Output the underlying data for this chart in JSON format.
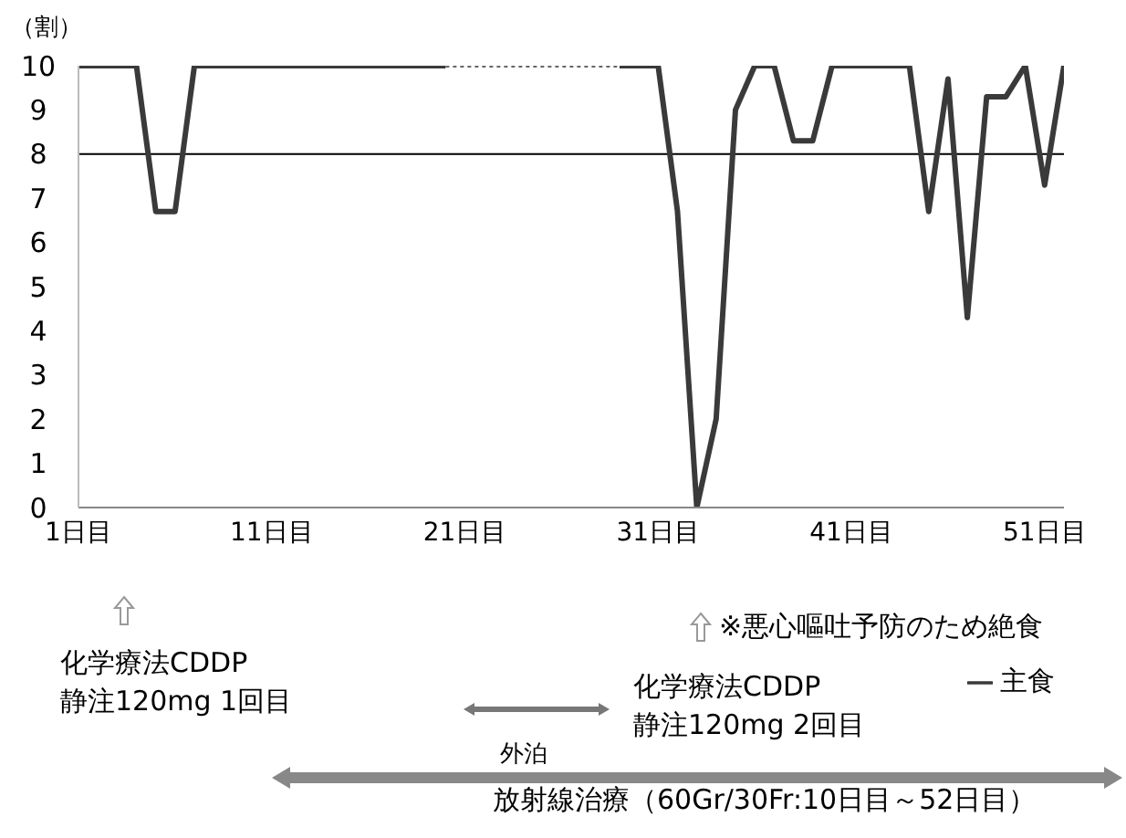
{
  "chart_data": {
    "type": "line",
    "ylabel": "（割）",
    "x": [
      1,
      2,
      3,
      4,
      5,
      6,
      7,
      8,
      9,
      10,
      11,
      12,
      13,
      14,
      15,
      16,
      17,
      18,
      19,
      20,
      21,
      22,
      23,
      24,
      25,
      26,
      27,
      28,
      29,
      30,
      31,
      32,
      33,
      34,
      35,
      36,
      37,
      38,
      39,
      40,
      41,
      42,
      43,
      44,
      45,
      46,
      47,
      48,
      49,
      50,
      51,
      52
    ],
    "xlim": [
      1,
      52
    ],
    "xticks": [
      {
        "value": 1,
        "label": "1日目"
      },
      {
        "value": 11,
        "label": "11日目"
      },
      {
        "value": 21,
        "label": "21日目"
      },
      {
        "value": 31,
        "label": "31日目"
      },
      {
        "value": 41,
        "label": "41日目"
      },
      {
        "value": 51,
        "label": "51日目"
      }
    ],
    "ylim": [
      0,
      10
    ],
    "yticks": [
      0,
      1,
      2,
      3,
      4,
      5,
      6,
      7,
      8,
      9,
      10
    ],
    "series": [
      {
        "name": "主食",
        "color": "#3a3a3a",
        "values": [
          10,
          10,
          10,
          10,
          6.7,
          6.7,
          10,
          10,
          10,
          10,
          10,
          10,
          10,
          10,
          10,
          10,
          10,
          10,
          10,
          10,
          null,
          null,
          null,
          null,
          null,
          null,
          null,
          null,
          10,
          10,
          10,
          6.7,
          0,
          2,
          9,
          10,
          10,
          8.3,
          8.3,
          10,
          10,
          10,
          10,
          10,
          6.7,
          9.7,
          4.3,
          9.3,
          9.3,
          10,
          7.3,
          10
        ]
      },
      {
        "color": "#666666",
        "line_style": "dotted",
        "x": [
          20,
          29
        ],
        "values": [
          10,
          10
        ]
      }
    ],
    "ref_lines": [
      {
        "axis": "y",
        "value": 8,
        "color": "#000000"
      }
    ],
    "marker": "none",
    "grid": false,
    "legend": "bottom right",
    "annotations": [
      "化学療法CDDP\n静注120mg 1回目",
      "※悪心嘔吐予防のため絶食",
      "化学療法CDDP\n静注120mg 2回目",
      "外泊",
      "放射線治療（60Gr/30Fr:10日目～52日目）"
    ]
  }
}
